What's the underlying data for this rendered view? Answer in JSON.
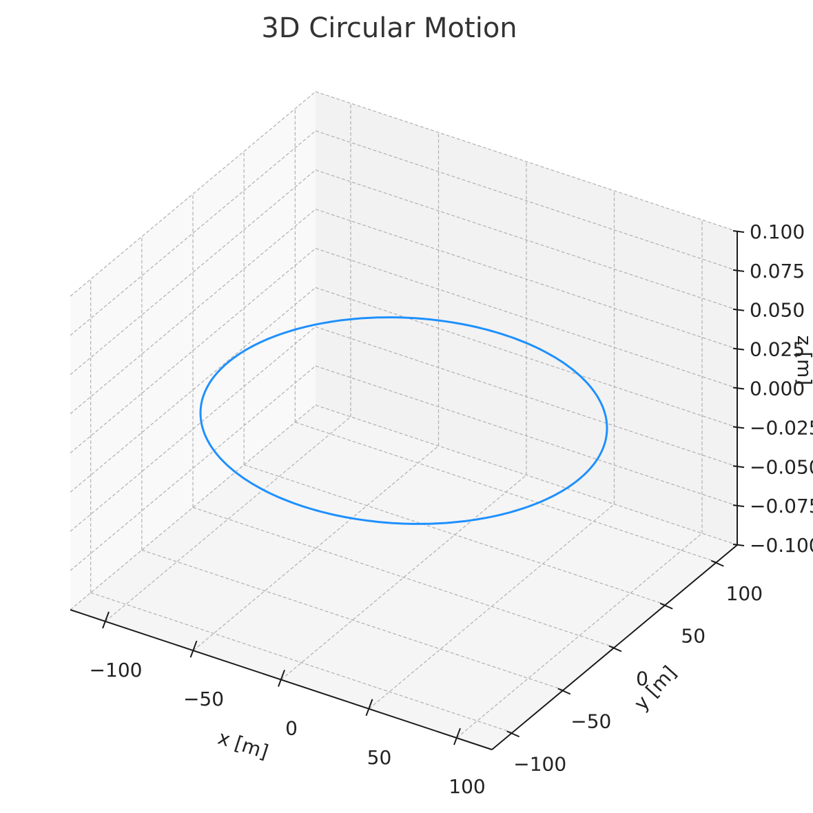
{
  "chart_data": {
    "type": "line",
    "title": "3D Circular Motion",
    "xlabel": "x [m]",
    "ylabel": "y [m]",
    "zlabel": "z [m]",
    "xlim": [
      -120,
      120
    ],
    "ylim": [
      -120,
      120
    ],
    "zlim": [
      -0.1,
      0.1
    ],
    "x_ticks": [
      "−100",
      "−50",
      "0",
      "50",
      "100"
    ],
    "y_ticks": [
      "−100",
      "−50",
      "0",
      "50",
      "100"
    ],
    "z_ticks": [
      "−0.100",
      "−0.075",
      "−0.050",
      "−0.025",
      "0.000",
      "0.025",
      "0.050",
      "0.075",
      "0.100"
    ],
    "grid": true,
    "series": [
      {
        "color": "#1e90ff",
        "shape": "circle",
        "radius": 100,
        "center": [
          0,
          0,
          0
        ]
      }
    ]
  }
}
